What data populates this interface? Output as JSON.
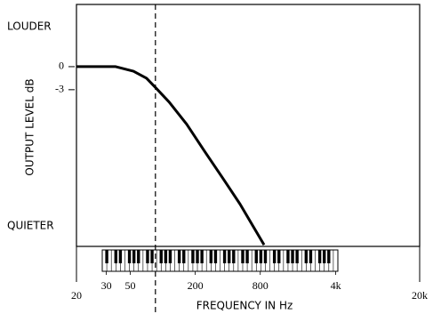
{
  "chart_data": {
    "type": "line",
    "x_label": "FREQUENCY IN Hz",
    "y_label": "OUTPUT LEVEL dB",
    "annotations": {
      "top": "LOUDER",
      "bottom": "QUIETER"
    },
    "x": [
      20,
      44,
      63,
      82,
      98,
      129,
      184,
      263,
      376,
      538,
      873
    ],
    "values": [
      0,
      0,
      -0.6,
      -1.5,
      -2.7,
      -4.6,
      -7.5,
      -11,
      -14.4,
      -17.9,
      -23.2
    ],
    "color": "#000000",
    "x_scale": "log",
    "xlim": [
      20,
      20000
    ],
    "xticks": [
      20,
      {
        "value": 20000,
        "label": "20k"
      }
    ],
    "ylim": [
      -23.4,
      8.1
    ],
    "yticks": [
      0,
      -3
    ],
    "cutoff_x": 98,
    "keyboard_xlim": [
      27.5,
      4186
    ],
    "keyboard_ticks": [
      30,
      50,
      200,
      800,
      {
        "value": 4000,
        "label": "4k"
      }
    ]
  }
}
